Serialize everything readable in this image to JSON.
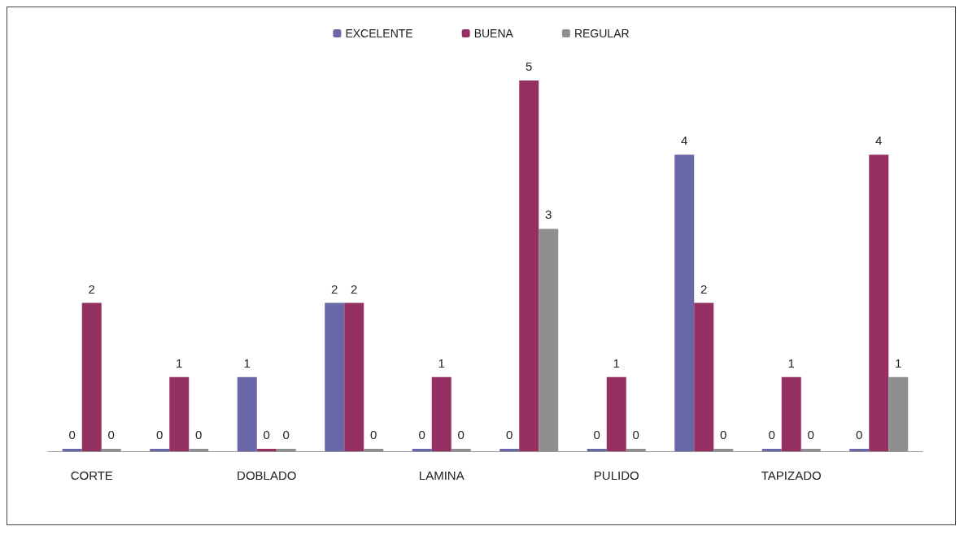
{
  "chart_data": {
    "type": "bar",
    "categories": [
      "CORTE",
      null,
      "DOBLADO",
      null,
      "LAMINA",
      null,
      "PULIDO",
      null,
      "TAPIZADO",
      null
    ],
    "series": [
      {
        "name": "EXCELENTE",
        "color": "#6a67a8",
        "values": [
          0,
          0,
          1,
          2,
          0,
          0,
          0,
          4,
          0,
          0
        ]
      },
      {
        "name": "BUENA",
        "color": "#953062",
        "values": [
          2,
          1,
          0,
          2,
          1,
          5,
          1,
          2,
          1,
          4
        ]
      },
      {
        "name": "REGULAR",
        "color": "#8f8f8f",
        "values": [
          0,
          0,
          0,
          0,
          0,
          3,
          0,
          0,
          0,
          1
        ]
      }
    ],
    "data_labels": true,
    "legend": "top",
    "tick_labels": "x"
  }
}
